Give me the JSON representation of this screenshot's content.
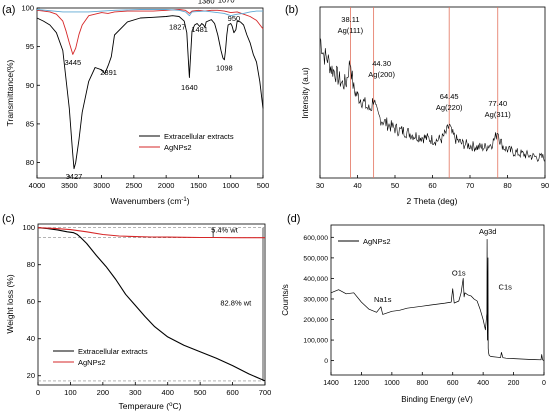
{
  "chart_data": [
    {
      "type": "line",
      "panel_label": "(a)",
      "xlabel": "Wavenumbers (cm",
      "xlabel_sup": "-1",
      "xlabel_tail": ")",
      "ylabel": "Transmittance(%)",
      "xlim": [
        4000,
        500
      ],
      "ylim": [
        78,
        100
      ],
      "xticks": [
        4000,
        3500,
        3000,
        2500,
        2000,
        1500,
        1000,
        500
      ],
      "yticks": [
        80,
        85,
        90,
        95,
        100
      ],
      "legend_position": "bottom-right",
      "series": [
        {
          "name": "Extracellular extracts",
          "color": "#000000",
          "x": [
            4000,
            3900,
            3800,
            3700,
            3600,
            3500,
            3450,
            3427,
            3400,
            3350,
            3300,
            3200,
            3100,
            3000,
            2950,
            2891,
            2850,
            2800,
            2600,
            2400,
            2200,
            2000,
            1900,
            1800,
            1720,
            1680,
            1650,
            1640,
            1630,
            1600,
            1560,
            1520,
            1481,
            1450,
            1420,
            1400,
            1380,
            1300,
            1250,
            1200,
            1150,
            1120,
            1098,
            1080,
            1060,
            1040,
            1000,
            980,
            950,
            920,
            900,
            850,
            800,
            750,
            700,
            650,
            600,
            550,
            500
          ],
          "y": [
            98.7,
            98.3,
            97.8,
            96.8,
            94.5,
            87.0,
            81.5,
            79.2,
            80.0,
            83.0,
            86.5,
            90.5,
            92.3,
            92.0,
            91.5,
            92.7,
            93.7,
            96.5,
            98.2,
            98.7,
            98.8,
            98.9,
            99.0,
            98.9,
            98.3,
            96.8,
            92.5,
            91.0,
            92.5,
            97.0,
            97.8,
            98.0,
            97.6,
            98.0,
            97.8,
            97.5,
            98.2,
            98.5,
            98.0,
            96.5,
            94.5,
            93.5,
            93.3,
            94.5,
            96.5,
            97.8,
            98.0,
            97.7,
            96.8,
            97.2,
            98.3,
            98.2,
            97.8,
            96.5,
            95.5,
            94.0,
            93.0,
            90.5,
            87.0
          ]
        },
        {
          "name": "AgNPs2",
          "color": "#d62728",
          "x": [
            4000,
            3900,
            3800,
            3700,
            3600,
            3550,
            3500,
            3445,
            3400,
            3350,
            3300,
            3200,
            3000,
            2900,
            2800,
            2600,
            2400,
            2200,
            2000,
            1800,
            1700,
            1640,
            1600,
            1500,
            1400,
            1300,
            1200,
            1100,
            1000,
            900,
            800,
            700,
            600,
            500
          ],
          "y": [
            99.7,
            99.6,
            99.5,
            99.2,
            98.3,
            97.0,
            95.5,
            94.0,
            94.8,
            96.6,
            97.8,
            99.0,
            99.4,
            99.3,
            99.5,
            99.6,
            99.6,
            99.6,
            99.7,
            99.8,
            99.7,
            99.3,
            99.6,
            99.7,
            99.6,
            99.7,
            99.7,
            99.6,
            99.4,
            99.5,
            99.2,
            98.9,
            98.4,
            97.3
          ]
        },
        {
          "name": "",
          "color": "#5fa8d3",
          "x": [
            4000,
            3600,
            3200,
            2800,
            2400,
            2000,
            1800,
            1700,
            1640,
            1600,
            1400,
            1100,
            1000,
            900,
            800,
            700,
            600,
            500
          ],
          "y": [
            99.8,
            99.5,
            99.5,
            99.7,
            99.8,
            99.8,
            99.7,
            99.5,
            99.0,
            99.5,
            99.6,
            99.3,
            99.0,
            99.2,
            99.3,
            99.5,
            99.6,
            99.6
          ]
        }
      ],
      "annotations": [
        {
          "text": "3445",
          "x": 3445,
          "y": 92.6
        },
        {
          "text": "3427",
          "x": 3427,
          "y": 77.9
        },
        {
          "text": "2891",
          "x": 2891,
          "y": 91.3
        },
        {
          "text": "1827",
          "x": 1827,
          "y": 97.2
        },
        {
          "text": "1640",
          "x": 1640,
          "y": 89.4
        },
        {
          "text": "1380",
          "x": 1380,
          "y": 100.6
        },
        {
          "text": "1481",
          "x": 1481,
          "y": 96.9
        },
        {
          "text": "1098",
          "x": 1098,
          "y": 91.9
        },
        {
          "text": "950",
          "x": 950,
          "y": 98.3
        },
        {
          "text": "1070",
          "x": 1070,
          "y": 100.7
        }
      ]
    },
    {
      "type": "line",
      "panel_label": "(b)",
      "xlabel": "2 Theta (deg)",
      "ylabel": "Intensity (a.u)",
      "xlim": [
        30,
        90
      ],
      "ylim": [
        0,
        1
      ],
      "xticks": [
        30,
        40,
        50,
        60,
        70,
        80,
        90
      ],
      "series": [
        {
          "name": "",
          "color": "#000000",
          "x": [
            30,
            31,
            32,
            33,
            34,
            35,
            36,
            37,
            37.5,
            38.11,
            38.6,
            39,
            40,
            41,
            42,
            43,
            43.8,
            44.3,
            44.8,
            45.5,
            47,
            49,
            51,
            53,
            55,
            57,
            59,
            61,
            62.5,
            63.8,
            64.45,
            65.1,
            66.5,
            68,
            70,
            72,
            74,
            75.8,
            76.8,
            77.4,
            78,
            79,
            80.5,
            82,
            84,
            86,
            88,
            90
          ],
          "y": [
            0.82,
            0.72,
            0.7,
            0.64,
            0.62,
            0.58,
            0.55,
            0.56,
            0.62,
            0.69,
            0.58,
            0.52,
            0.48,
            0.46,
            0.43,
            0.4,
            0.42,
            0.48,
            0.4,
            0.36,
            0.33,
            0.3,
            0.28,
            0.27,
            0.25,
            0.24,
            0.23,
            0.22,
            0.23,
            0.27,
            0.31,
            0.26,
            0.22,
            0.2,
            0.19,
            0.18,
            0.18,
            0.2,
            0.24,
            0.28,
            0.22,
            0.18,
            0.16,
            0.15,
            0.14,
            0.13,
            0.12,
            0.12
          ]
        }
      ],
      "reference_lines": [
        38.11,
        44.3,
        64.45,
        77.4
      ],
      "peak_labels": [
        {
          "text": "38.11",
          "sub": "Ag(111)",
          "x": 38.11
        },
        {
          "text": "44.30",
          "sub": "Ag(200)",
          "x": 44.3
        },
        {
          "text": "64.45",
          "sub": "Ag(220)",
          "x": 64.45
        },
        {
          "text": "77.40",
          "sub": "Ag(311)",
          "x": 77.4
        }
      ]
    },
    {
      "type": "line",
      "panel_label": "(c)",
      "xlabel": "Temperaure (",
      "xlabel_sup": "o",
      "xlabel_tail": "C)",
      "ylabel": "Weight loss (%)",
      "xlim": [
        0,
        700
      ],
      "ylim": [
        15,
        102
      ],
      "xticks": [
        0,
        100,
        200,
        300,
        400,
        500,
        600,
        700
      ],
      "yticks": [
        20,
        40,
        60,
        80,
        100
      ],
      "legend_position": "bottom-left",
      "series": [
        {
          "name": "Extracellular extracts",
          "color": "#000000",
          "x": [
            0,
            30,
            60,
            90,
            110,
            120,
            130,
            150,
            180,
            210,
            240,
            270,
            300,
            330,
            360,
            400,
            450,
            500,
            550,
            600,
            650,
            700
          ],
          "y": [
            100,
            99.5,
            98.8,
            97.8,
            97.3,
            96.5,
            95.0,
            91.5,
            85.0,
            79.0,
            72.0,
            64.0,
            58.0,
            52.0,
            46.5,
            41.0,
            36.5,
            33.0,
            29.5,
            25.5,
            21.0,
            17.2
          ]
        },
        {
          "name": "AgNPs2",
          "color": "#d62728",
          "x": [
            0,
            50,
            100,
            150,
            200,
            250,
            300,
            350,
            400,
            450,
            500,
            550,
            600,
            650,
            700
          ],
          "y": [
            100,
            99.6,
            99.0,
            97.8,
            96.3,
            95.5,
            95.2,
            95.0,
            94.9,
            94.8,
            94.7,
            94.7,
            94.6,
            94.6,
            94.6
          ]
        }
      ],
      "annotations": [
        {
          "text": "5.4% wt",
          "x": 575,
          "y": 97.5
        },
        {
          "text": "82.8% wt",
          "x": 610,
          "y": 58
        }
      ],
      "dashed_reference_levels": [
        100,
        94.6,
        17.2
      ]
    },
    {
      "type": "line",
      "panel_label": "(d)",
      "xlabel": "Binding Energy (eV)",
      "ylabel": "Counts/s",
      "xlim": [
        1400,
        0
      ],
      "ylim": [
        -70000,
        660000
      ],
      "xticks": [
        1400,
        1200,
        1000,
        800,
        600,
        400,
        200,
        0
      ],
      "yticks": [
        0,
        100000,
        200000,
        300000,
        400000,
        500000,
        600000
      ],
      "ytick_labels": [
        "0",
        "100,000",
        "200,000",
        "300,000",
        "400,000",
        "500,000",
        "600,000"
      ],
      "legend_position": "top-left",
      "series": [
        {
          "name": "AgNPs2",
          "color": "#000000",
          "x": [
            1400,
            1350,
            1300,
            1250,
            1200,
            1150,
            1100,
            1072,
            1060,
            1000,
            950,
            900,
            850,
            800,
            750,
            700,
            650,
            610,
            600,
            590,
            560,
            545,
            531,
            525,
            520,
            500,
            480,
            460,
            440,
            420,
            400,
            385,
            375,
            374,
            372,
            368,
            367,
            365,
            360,
            350,
            300,
            285,
            280,
            270,
            250,
            200,
            150,
            100,
            60,
            20,
            15,
            10,
            5,
            0
          ],
          "y": [
            330000,
            345000,
            325000,
            330000,
            285000,
            250000,
            235000,
            262000,
            225000,
            240000,
            245000,
            255000,
            260000,
            265000,
            270000,
            275000,
            280000,
            285000,
            350000,
            280000,
            290000,
            330000,
            400000,
            310000,
            330000,
            320000,
            315000,
            300000,
            290000,
            250000,
            200000,
            150000,
            230000,
            590000,
            100000,
            500000,
            60000,
            40000,
            25000,
            20000,
            16000,
            15000,
            40000,
            14000,
            12000,
            10000,
            8000,
            6000,
            5000,
            4000,
            30000,
            5000,
            2000,
            0
          ]
        }
      ],
      "annotations": [
        {
          "text": "Ag3d",
          "x": 370,
          "y": 615000
        },
        {
          "text": "O1s",
          "x": 560,
          "y": 415000
        },
        {
          "text": "Na1s",
          "x": 1060,
          "y": 285000
        },
        {
          "text": "C1s",
          "x": 255,
          "y": 345000
        }
      ]
    }
  ]
}
